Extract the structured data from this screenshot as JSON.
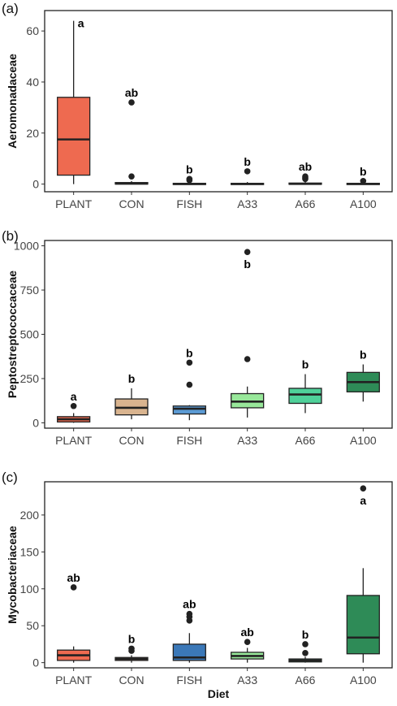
{
  "chart_data": [
    {
      "type": "box",
      "panel_label": "(a)",
      "ylabel": "Aeromonadaceae",
      "xlabel": "",
      "ylim": [
        -3,
        68
      ],
      "yticks": [
        0,
        20,
        40,
        60
      ],
      "ytick_labels": [
        "0",
        "20",
        "40",
        "60"
      ],
      "categories": [
        "PLANT",
        "CON",
        "FISH",
        "A33",
        "A66",
        "A100"
      ],
      "boxes": [
        {
          "category": "PLANT",
          "fill": "#ee6a50",
          "q1": 3.5,
          "median": 17.5,
          "q3": 34,
          "whisker_low": 0,
          "whisker_high": 64,
          "outliers": [],
          "label": "a",
          "label_y": 64
        },
        {
          "category": "CON",
          "fill": "#f2a17a",
          "q1": 0,
          "median": 0.2,
          "q3": 0.6,
          "whisker_low": 0,
          "whisker_high": 1.2,
          "outliers": [
            3,
            32
          ],
          "label": "ab",
          "label_y": 32
        },
        {
          "category": "FISH",
          "fill": "#5b9bd5",
          "q1": 0,
          "median": 0.1,
          "q3": 0.3,
          "whisker_low": 0,
          "whisker_high": 0.8,
          "outliers": [
            1.5,
            2
          ],
          "label": "b",
          "label_y": 2
        },
        {
          "category": "A33",
          "fill": "#98e89a",
          "q1": 0,
          "median": 0.1,
          "q3": 0.3,
          "whisker_low": 0,
          "whisker_high": 0.8,
          "outliers": [
            5
          ],
          "label": "b",
          "label_y": 5
        },
        {
          "category": "A66",
          "fill": "#4fd19a",
          "q1": 0,
          "median": 0.1,
          "q3": 0.4,
          "whisker_low": 0,
          "whisker_high": 1,
          "outliers": [
            2,
            2.5,
            3
          ],
          "label": "ab",
          "label_y": 3
        },
        {
          "category": "A100",
          "fill": "#2e8b57",
          "q1": 0,
          "median": 0.1,
          "q3": 0.3,
          "whisker_low": 0,
          "whisker_high": 0.6,
          "outliers": [
            1.2
          ],
          "label": "b",
          "label_y": 1.2
        }
      ]
    },
    {
      "type": "box",
      "panel_label": "(b)",
      "ylabel": "Peptostreptococcaceae",
      "xlabel": "",
      "ylim": [
        -30,
        1030
      ],
      "yticks": [
        0,
        250,
        500,
        750,
        1000
      ],
      "ytick_labels": [
        "0",
        "250",
        "500",
        "750",
        "1000"
      ],
      "categories": [
        "PLANT",
        "CON",
        "FISH",
        "A33",
        "A66",
        "A100"
      ],
      "boxes": [
        {
          "category": "PLANT",
          "fill": "#ee6a50",
          "q1": 5,
          "median": 20,
          "q3": 35,
          "whisker_low": 0,
          "whisker_high": 55,
          "outliers": [
            95
          ],
          "label": "a",
          "label_y": 95
        },
        {
          "category": "CON",
          "fill": "#d9b48f",
          "q1": 45,
          "median": 85,
          "q3": 135,
          "whisker_low": 20,
          "whisker_high": 195,
          "outliers": [],
          "label": "b",
          "label_y": 195
        },
        {
          "category": "FISH",
          "fill": "#5b9bd5",
          "q1": 50,
          "median": 80,
          "q3": 95,
          "whisker_low": 15,
          "whisker_high": 100,
          "outliers": [
            215,
            340
          ],
          "label": "b",
          "label_y": 340
        },
        {
          "category": "A33",
          "fill": "#98e89a",
          "q1": 85,
          "median": 120,
          "q3": 165,
          "whisker_low": 30,
          "whisker_high": 205,
          "outliers": [
            360,
            965
          ],
          "label": "b",
          "label_y": 965
        },
        {
          "category": "A66",
          "fill": "#4fd19a",
          "q1": 110,
          "median": 160,
          "q3": 195,
          "whisker_low": 55,
          "whisker_high": 275,
          "outliers": [],
          "label": "b",
          "label_y": 275
        },
        {
          "category": "A100",
          "fill": "#2e8b57",
          "q1": 175,
          "median": 230,
          "q3": 285,
          "whisker_low": 120,
          "whisker_high": 330,
          "outliers": [],
          "label": "b",
          "label_y": 330
        }
      ]
    },
    {
      "type": "box",
      "panel_label": "(c)",
      "ylabel": "Mycobacteriaceae",
      "xlabel": "Diet",
      "ylim": [
        -7,
        245
      ],
      "yticks": [
        0,
        50,
        100,
        150,
        200
      ],
      "ytick_labels": [
        "0",
        "50",
        "100",
        "150",
        "200"
      ],
      "categories": [
        "PLANT",
        "CON",
        "FISH",
        "A33",
        "A66",
        "A100"
      ],
      "boxes": [
        {
          "category": "PLANT",
          "fill": "#ee6a50",
          "q1": 3,
          "median": 10,
          "q3": 17,
          "whisker_low": 0,
          "whisker_high": 22,
          "outliers": [
            102
          ],
          "label": "ab",
          "label_y": 102
        },
        {
          "category": "CON",
          "fill": "#f2a17a",
          "q1": 3,
          "median": 5,
          "q3": 7,
          "whisker_low": 0,
          "whisker_high": 10,
          "outliers": [
            16,
            19
          ],
          "label": "b",
          "label_y": 19
        },
        {
          "category": "FISH",
          "fill": "#3b78b8",
          "q1": 3,
          "median": 7,
          "q3": 25,
          "whisker_low": 0,
          "whisker_high": 40,
          "outliers": [
            57,
            62,
            66
          ],
          "label": "ab",
          "label_y": 66
        },
        {
          "category": "A33",
          "fill": "#98e89a",
          "q1": 5,
          "median": 9,
          "q3": 14,
          "whisker_low": 0,
          "whisker_high": 20,
          "outliers": [
            28
          ],
          "label": "ab",
          "label_y": 28
        },
        {
          "category": "A66",
          "fill": "#4fd19a",
          "q1": 1,
          "median": 3,
          "q3": 5,
          "whisker_low": 0,
          "whisker_high": 8,
          "outliers": [
            13,
            25
          ],
          "label": "b",
          "label_y": 25
        },
        {
          "category": "A100",
          "fill": "#2e8b57",
          "q1": 12,
          "median": 34,
          "q3": 91,
          "whisker_low": 0,
          "whisker_high": 128,
          "outliers": [
            236
          ],
          "label": "a",
          "label_y": 236
        }
      ]
    }
  ]
}
